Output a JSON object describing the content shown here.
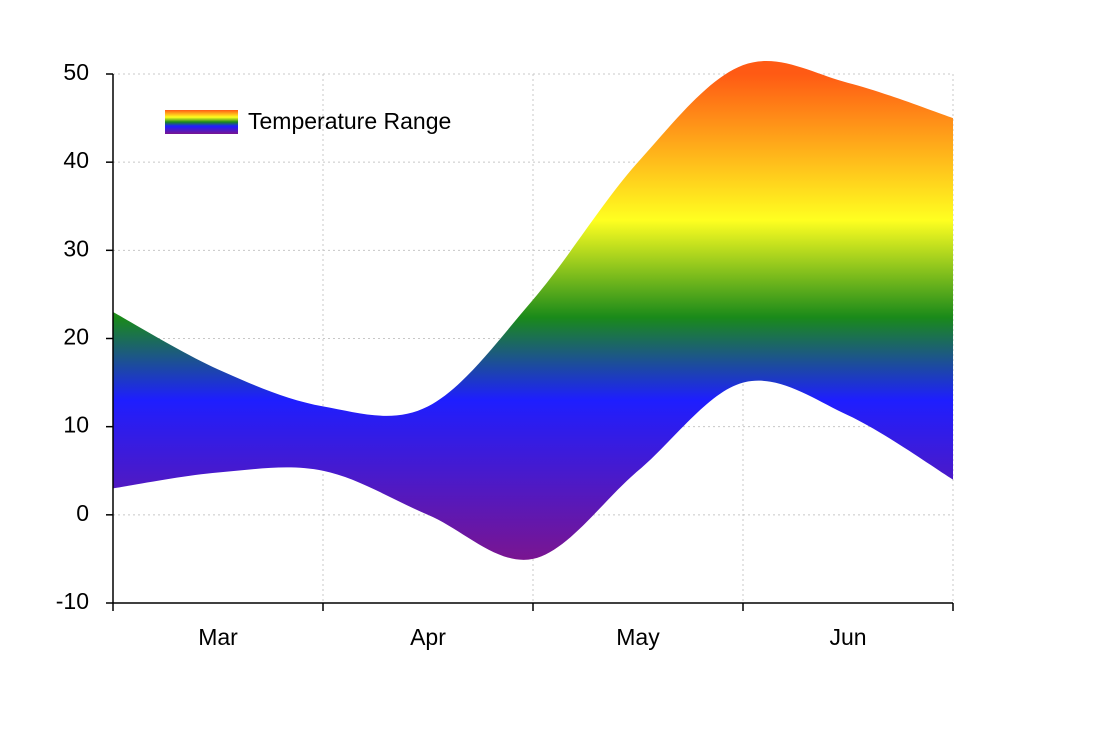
{
  "chart_data": {
    "type": "rangearea",
    "categories": [
      "Mar",
      "Apr",
      "May",
      "Jun"
    ],
    "x": [
      0,
      0.5,
      1,
      1.5,
      2,
      2.5,
      3,
      3.5,
      4
    ],
    "xlim": [
      0,
      4
    ],
    "xticks": [
      0,
      1,
      2,
      3,
      4
    ],
    "series": [
      {
        "name": "Temperature Range",
        "colors": [
          "#7a1590",
          "#1e1eff",
          "#1a8a1a",
          "#ffff20",
          "#ff5a14"
        ],
        "high": [
          23,
          16.5,
          12.3,
          12.3,
          24.4,
          40,
          51,
          49,
          45
        ],
        "low": [
          3,
          4.8,
          5,
          0,
          -5,
          5,
          15,
          11.3,
          4
        ]
      }
    ],
    "ylim": [
      -10,
      50
    ],
    "yticks": [
      -10,
      0,
      10,
      20,
      30,
      40,
      50
    ],
    "grid": true,
    "legend": "top-left"
  }
}
